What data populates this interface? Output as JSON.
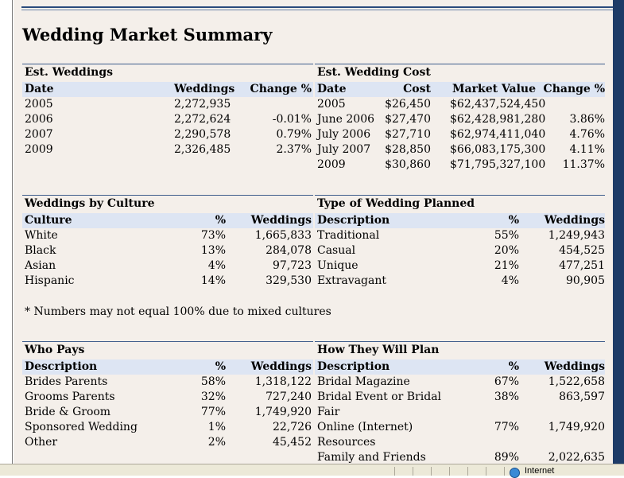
{
  "page": {
    "title": "Wedding Market Summary"
  },
  "status": {
    "zone": "Internet"
  },
  "est_weddings": {
    "title": "Est. Weddings",
    "headers": [
      "Date",
      "Weddings",
      "Change %"
    ],
    "rows": [
      [
        "2005",
        "2,272,935",
        ""
      ],
      [
        "2006",
        "2,272,624",
        "-0.01%"
      ],
      [
        "2007",
        "2,290,578",
        "0.79%"
      ],
      [
        "2009",
        "2,326,485",
        "2.37%"
      ]
    ]
  },
  "est_cost": {
    "title": "Est. Wedding Cost",
    "headers": [
      "Date",
      "Cost",
      "Market Value",
      "Change %"
    ],
    "rows": [
      [
        "2005",
        "$26,450",
        "$62,437,524,450",
        ""
      ],
      [
        "June 2006",
        "$27,470",
        "$62,428,981,280",
        "3.86%"
      ],
      [
        "July 2006",
        "$27,710",
        "$62,974,411,040",
        "4.76%"
      ],
      [
        "July 2007",
        "$28,850",
        "$66,083,175,300",
        "4.11%"
      ],
      [
        "2009",
        "$30,860",
        "$71,795,327,100",
        "11.37%"
      ]
    ]
  },
  "culture": {
    "title": "Weddings by Culture",
    "headers": [
      "Culture",
      "%",
      "Weddings"
    ],
    "rows": [
      [
        "White",
        "73%",
        "1,665,833"
      ],
      [
        "Black",
        "13%",
        "284,078"
      ],
      [
        "Asian",
        "4%",
        "97,723"
      ],
      [
        "Hispanic",
        "14%",
        "329,530"
      ]
    ],
    "note": "* Numbers may not equal 100% due to mixed cultures"
  },
  "type_planned": {
    "title": "Type of Wedding Planned",
    "headers": [
      "Description",
      "%",
      "Weddings"
    ],
    "rows": [
      [
        "Traditional",
        "55%",
        "1,249,943"
      ],
      [
        "Casual",
        "20%",
        "454,525"
      ],
      [
        "Unique",
        "21%",
        "477,251"
      ],
      [
        "Extravagant",
        "4%",
        "90,905"
      ]
    ]
  },
  "who_pays": {
    "title": "Who Pays",
    "headers": [
      "Description",
      "%",
      "Weddings"
    ],
    "rows": [
      [
        "Brides Parents",
        "58%",
        "1,318,122"
      ],
      [
        "Grooms Parents",
        "32%",
        "727,240"
      ],
      [
        "Bride & Groom",
        "77%",
        "1,749,920"
      ],
      [
        "Sponsored Wedding",
        "1%",
        "22,726"
      ],
      [
        "Other",
        "2%",
        "45,452"
      ]
    ]
  },
  "how_plan": {
    "title": "How They Will Plan",
    "headers": [
      "Description",
      "%",
      "Weddings"
    ],
    "rows": [
      [
        "Bridal Magazine",
        "67%",
        "1,522,658"
      ],
      [
        "Bridal Event or Bridal",
        "38%",
        "863,597"
      ],
      [
        "Fair",
        "",
        ""
      ],
      [
        "Online (Internet)",
        "77%",
        "1,749,920"
      ],
      [
        "Resources",
        "",
        ""
      ],
      [
        "Family and Friends",
        "89%",
        "2,022,635"
      ]
    ]
  }
}
